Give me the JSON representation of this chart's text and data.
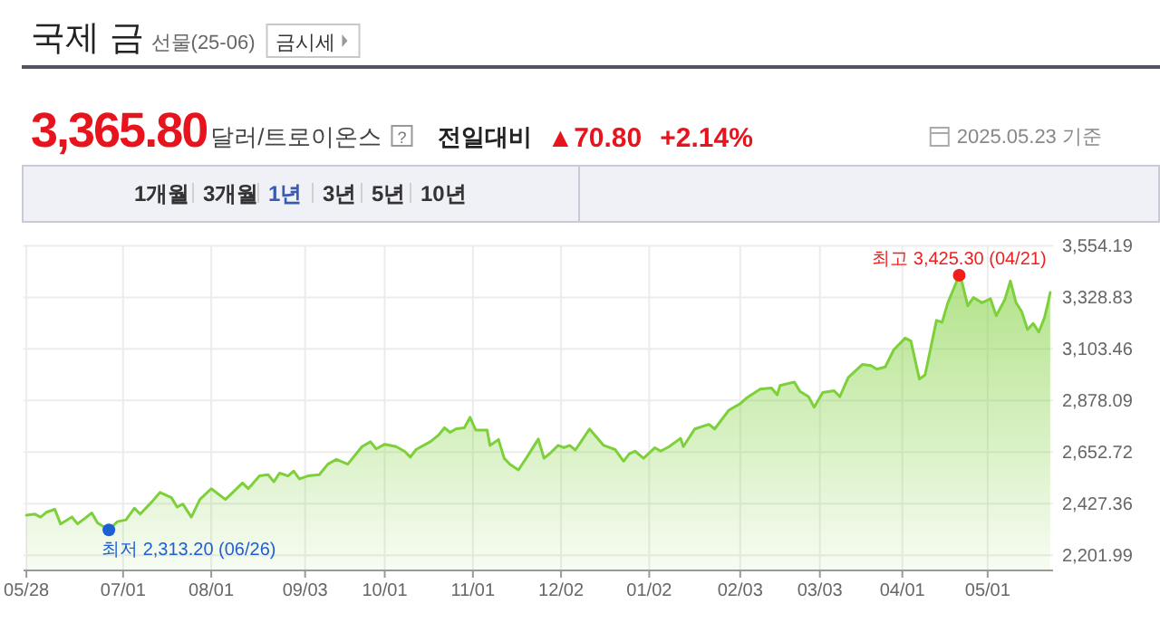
{
  "chart_data": {
    "type": "area",
    "title": "국제 금",
    "series": [
      {
        "color": "#7ed03a",
        "x": [
          "2024-05-28",
          "2024-05-31",
          "2024-06-02",
          "2024-06-04",
          "2024-06-07",
          "2024-06-09",
          "2024-06-13",
          "2024-06-15",
          "2024-06-20",
          "2024-06-22",
          "2024-06-26",
          "2024-06-29",
          "2024-07-02",
          "2024-07-05",
          "2024-07-07",
          "2024-07-11",
          "2024-07-14",
          "2024-07-18",
          "2024-07-20",
          "2024-07-22",
          "2024-07-25",
          "2024-07-28",
          "2024-08-01",
          "2024-08-06",
          "2024-08-12",
          "2024-08-14",
          "2024-08-18",
          "2024-08-21",
          "2024-08-23",
          "2024-08-25",
          "2024-08-28",
          "2024-08-30",
          "2024-09-01",
          "2024-09-04",
          "2024-09-08",
          "2024-09-11",
          "2024-09-14",
          "2024-09-18",
          "2024-09-23",
          "2024-09-26",
          "2024-09-28",
          "2024-10-01",
          "2024-10-05",
          "2024-10-08",
          "2024-10-10",
          "2024-10-12",
          "2024-10-17",
          "2024-10-20",
          "2024-10-22",
          "2024-10-24",
          "2024-10-26",
          "2024-10-29",
          "2024-10-31",
          "2024-11-02",
          "2024-11-06",
          "2024-11-07",
          "2024-11-10",
          "2024-11-12",
          "2024-11-14",
          "2024-11-17",
          "2024-11-20",
          "2024-11-24",
          "2024-11-26",
          "2024-11-28",
          "2024-12-01",
          "2024-12-03",
          "2024-12-05",
          "2024-12-07",
          "2024-12-09",
          "2024-12-12",
          "2024-12-17",
          "2024-12-21",
          "2024-12-24",
          "2024-12-26",
          "2024-12-28",
          "2024-12-31",
          "2025-01-04",
          "2025-01-06",
          "2025-01-09",
          "2025-01-13",
          "2025-01-14",
          "2025-01-18",
          "2025-01-23",
          "2025-01-25",
          "2025-01-30",
          "2025-02-03",
          "2025-02-05",
          "2025-02-10",
          "2025-02-14",
          "2025-02-16",
          "2025-02-17",
          "2025-02-22",
          "2025-02-24",
          "2025-02-27",
          "2025-03-01",
          "2025-03-04",
          "2025-03-08",
          "2025-03-10",
          "2025-03-13",
          "2025-03-18",
          "2025-03-21",
          "2025-03-23",
          "2025-03-26",
          "2025-03-29",
          "2025-04-02",
          "2025-04-04",
          "2025-04-07",
          "2025-04-09",
          "2025-04-13",
          "2025-04-15",
          "2025-04-17",
          "2025-04-21",
          "2025-04-22",
          "2025-04-24",
          "2025-04-26",
          "2025-04-29",
          "2025-05-02",
          "2025-05-04",
          "2025-05-07",
          "2025-05-09",
          "2025-05-11",
          "2025-05-13",
          "2025-05-15",
          "2025-05-17",
          "2025-05-19",
          "2025-05-21",
          "2025-05-22",
          "2025-05-23"
        ],
        "values": [
          2377,
          2382,
          2369,
          2390,
          2403,
          2339,
          2369,
          2339,
          2387,
          2344,
          2313.2,
          2349,
          2357,
          2408,
          2382,
          2434,
          2477,
          2454,
          2413,
          2426,
          2369,
          2446,
          2493,
          2446,
          2518,
          2493,
          2549,
          2554,
          2523,
          2561,
          2549,
          2570,
          2536,
          2549,
          2554,
          2600,
          2621,
          2600,
          2677,
          2698,
          2667,
          2687,
          2677,
          2656,
          2631,
          2664,
          2698,
          2728,
          2759,
          2739,
          2754,
          2759,
          2805,
          2749,
          2749,
          2682,
          2708,
          2626,
          2600,
          2575,
          2631,
          2710,
          2626,
          2646,
          2682,
          2672,
          2682,
          2662,
          2698,
          2754,
          2682,
          2664,
          2613,
          2646,
          2657,
          2626,
          2672,
          2657,
          2677,
          2713,
          2677,
          2754,
          2774,
          2754,
          2836,
          2864,
          2887,
          2928,
          2933,
          2903,
          2944,
          2959,
          2918,
          2895,
          2849,
          2913,
          2921,
          2895,
          2979,
          3036,
          3031,
          3015,
          3025,
          3100,
          3151,
          3138,
          2972,
          2990,
          3228,
          3220,
          3305,
          3425.3,
          3394,
          3292,
          3328,
          3305,
          3323,
          3248,
          3318,
          3400,
          3305,
          3266,
          3188,
          3215,
          3177,
          3241,
          3292,
          3350
        ]
      }
    ],
    "xlim": [
      "2024-05-27",
      "2025-05-24"
    ],
    "xticks": [
      {
        "value": "2024-05-28",
        "label": "05/28"
      },
      {
        "value": "2024-07-01",
        "label": "07/01"
      },
      {
        "value": "2024-08-01",
        "label": "08/01"
      },
      {
        "value": "2024-09-03",
        "label": "09/03"
      },
      {
        "value": "2024-10-01",
        "label": "10/01"
      },
      {
        "value": "2024-11-01",
        "label": "11/01"
      },
      {
        "value": "2024-12-02",
        "label": "12/02"
      },
      {
        "value": "2025-01-02",
        "label": "01/02"
      },
      {
        "value": "2025-02-03",
        "label": "02/03"
      },
      {
        "value": "2025-03-03",
        "label": "03/03"
      },
      {
        "value": "2025-04-01",
        "label": "04/01"
      },
      {
        "value": "2025-05-01",
        "label": "05/01"
      }
    ],
    "ylim": [
      2136,
      3554.19
    ],
    "yticks": [
      {
        "value": 2201.99,
        "label": "2,201.99"
      },
      {
        "value": 2427.36,
        "label": "2,427.36"
      },
      {
        "value": 2652.72,
        "label": "2,652.72"
      },
      {
        "value": 2878.09,
        "label": "2,878.09"
      },
      {
        "value": 3103.46,
        "label": "3,103.46"
      },
      {
        "value": 3328.83,
        "label": "3,328.83"
      },
      {
        "value": 3554.19,
        "label": "3,554.19"
      }
    ],
    "grid": true,
    "annotations": [
      "선물(25-06)",
      "금시세",
      "3,365.80",
      "달러/트로이온스",
      "?",
      "전일대비",
      "▲70.80",
      "+2.14%",
      "2025.05.23 기준",
      "1개월",
      "3개월",
      "1년",
      "3년",
      "5년",
      "10년",
      {
        "text": "최고 3,425.30 (04/21)",
        "x": "2025-04-21",
        "y": 3425.3
      },
      {
        "text": "최저 2,313.20 (06/26)",
        "x": "2024-06-26",
        "y": 2313.2
      }
    ]
  }
}
